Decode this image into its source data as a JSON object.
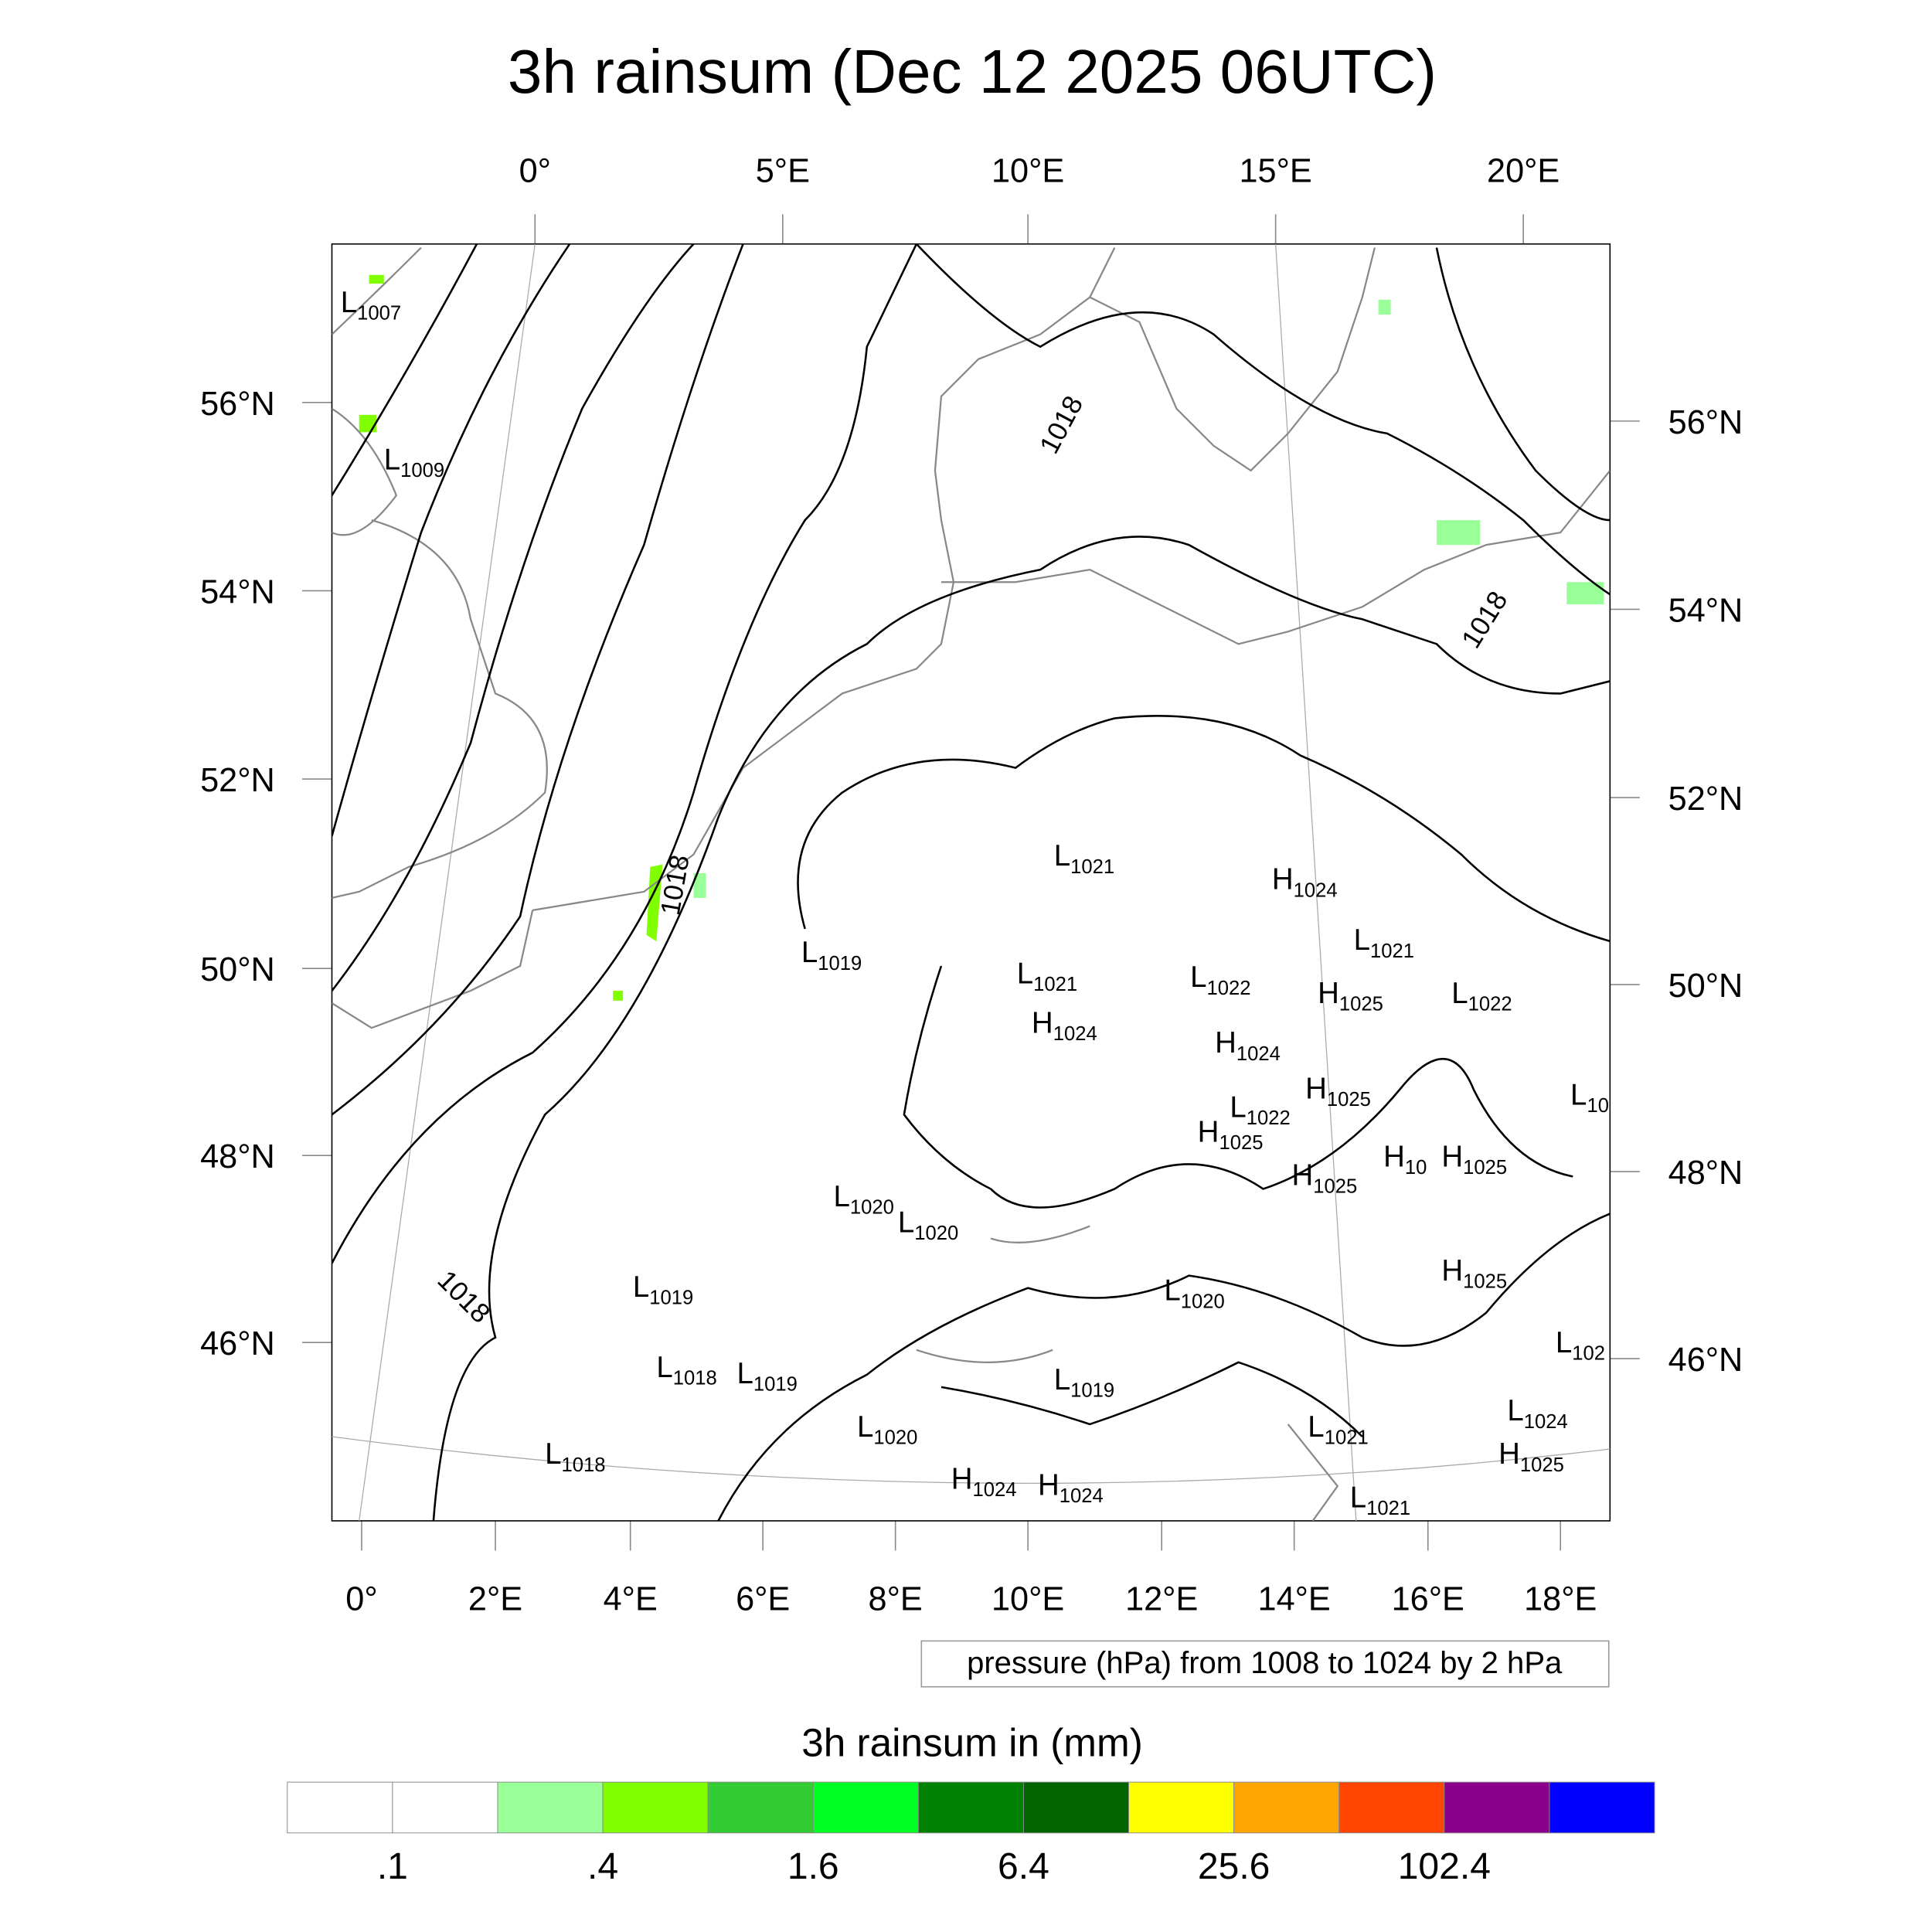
{
  "title": "3h rainsum (Dec 12 2025 06UTC)",
  "top_lon_labels": [
    "0°",
    "5°E",
    "10°E",
    "15°E",
    "20°E"
  ],
  "bottom_lon_labels": [
    "0°",
    "2°E",
    "4°E",
    "6°E",
    "8°E",
    "10°E",
    "12°E",
    "14°E",
    "16°E",
    "18°E"
  ],
  "left_lat_labels": [
    "56°N",
    "54°N",
    "52°N",
    "50°N",
    "48°N",
    "46°N"
  ],
  "right_lat_labels": [
    "56°N",
    "54°N",
    "52°N",
    "50°N",
    "48°N",
    "46°N"
  ],
  "contour_info": "pressure (hPa) from 1008 to 1024 by 2 hPa",
  "contour_labels": [
    "1018",
    "1018",
    "1018",
    "1018"
  ],
  "pressure_centers": [
    {
      "type": "L",
      "value": "1007"
    },
    {
      "type": "L",
      "value": "1009"
    },
    {
      "type": "L",
      "value": "1021"
    },
    {
      "type": "H",
      "value": "1024"
    },
    {
      "type": "L",
      "value": "1021"
    },
    {
      "type": "L",
      "value": "1019"
    },
    {
      "type": "L",
      "value": "1021"
    },
    {
      "type": "L",
      "value": "1022"
    },
    {
      "type": "H",
      "value": "1025"
    },
    {
      "type": "L",
      "value": "1022"
    },
    {
      "type": "H",
      "value": "1024"
    },
    {
      "type": "H",
      "value": "1024"
    },
    {
      "type": "H",
      "value": "1025"
    },
    {
      "type": "L",
      "value": "10"
    },
    {
      "type": "L",
      "value": "1022"
    },
    {
      "type": "H",
      "value": "1025"
    },
    {
      "type": "H",
      "value": "10"
    },
    {
      "type": "H",
      "value": "1025"
    },
    {
      "type": "H",
      "value": "1025"
    },
    {
      "type": "L",
      "value": "1020"
    },
    {
      "type": "L",
      "value": "1020"
    },
    {
      "type": "L",
      "value": "1019"
    },
    {
      "type": "L",
      "value": "1020"
    },
    {
      "type": "H",
      "value": "1025"
    },
    {
      "type": "L",
      "value": "102"
    },
    {
      "type": "L",
      "value": "1018"
    },
    {
      "type": "L",
      "value": "1019"
    },
    {
      "type": "L",
      "value": "1019"
    },
    {
      "type": "L",
      "value": "1024"
    },
    {
      "type": "L",
      "value": "1020"
    },
    {
      "type": "L",
      "value": "1021"
    },
    {
      "type": "L",
      "value": "1018"
    },
    {
      "type": "H",
      "value": "1025"
    },
    {
      "type": "H",
      "value": "1024"
    },
    {
      "type": "H",
      "value": "1024"
    },
    {
      "type": "L",
      "value": "1021"
    }
  ],
  "colorbar": {
    "title": "3h rainsum in (mm)",
    "colors": [
      "#ffffff",
      "#ffffff",
      "#99ff99",
      "#80ff00",
      "#33cc33",
      "#00ff22",
      "#008000",
      "#006400",
      "#ffff00",
      "#ffa500",
      "#ff4500",
      "#8b008b",
      "#0000ff"
    ],
    "labels": [
      ".1",
      ".4",
      "1.6",
      "6.4",
      "25.6",
      "102.4"
    ]
  }
}
